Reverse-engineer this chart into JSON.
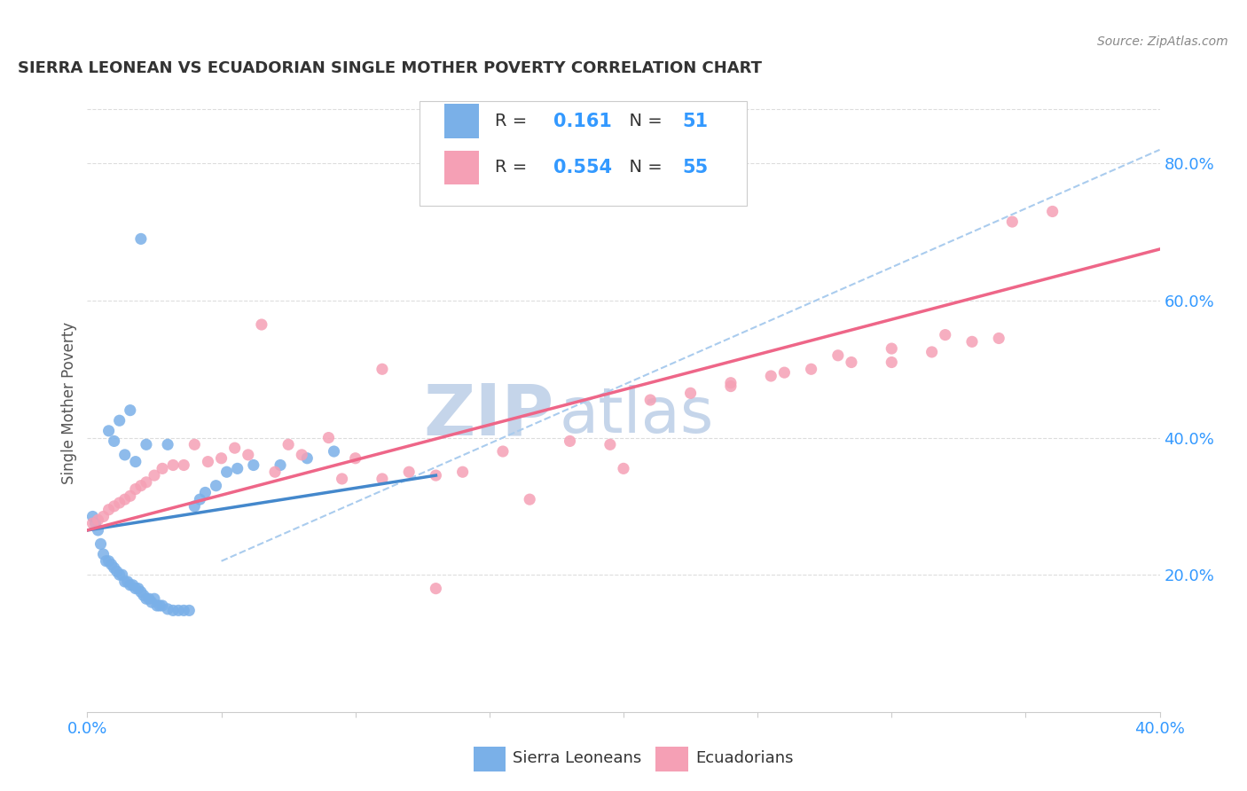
{
  "title": "SIERRA LEONEAN VS ECUADORIAN SINGLE MOTHER POVERTY CORRELATION CHART",
  "source": "Source: ZipAtlas.com",
  "ylabel": "Single Mother Poverty",
  "right_yticks": [
    "20.0%",
    "40.0%",
    "60.0%",
    "80.0%"
  ],
  "right_ytick_vals": [
    0.2,
    0.4,
    0.6,
    0.8
  ],
  "legend_blue_r": "0.161",
  "legend_blue_n": "51",
  "legend_pink_r": "0.554",
  "legend_pink_n": "55",
  "legend_label_blue": "Sierra Leoneans",
  "legend_label_pink": "Ecuadorians",
  "blue_scatter_color": "#7ab0e8",
  "pink_scatter_color": "#f5a0b5",
  "blue_line_color": "#4488cc",
  "pink_line_color": "#ee6688",
  "dashed_line_color": "#aaccee",
  "watermark_zip_color": "#c5d5ea",
  "watermark_atlas_color": "#c5d5ea",
  "title_color": "#333333",
  "axis_label_color": "#555555",
  "right_tick_color": "#3399ff",
  "source_color": "#888888",
  "grid_color": "#dddddd",
  "xlim": [
    0.0,
    0.4
  ],
  "ylim": [
    0.0,
    0.9
  ],
  "blue_x": [
    0.002,
    0.003,
    0.004,
    0.005,
    0.006,
    0.007,
    0.008,
    0.009,
    0.01,
    0.011,
    0.012,
    0.013,
    0.014,
    0.015,
    0.016,
    0.017,
    0.018,
    0.019,
    0.02,
    0.021,
    0.022,
    0.023,
    0.024,
    0.025,
    0.026,
    0.027,
    0.028,
    0.03,
    0.032,
    0.034,
    0.036,
    0.038,
    0.04,
    0.042,
    0.044,
    0.048,
    0.052,
    0.056,
    0.062,
    0.072,
    0.082,
    0.092,
    0.01,
    0.014,
    0.018,
    0.022,
    0.03,
    0.008,
    0.012,
    0.016,
    0.02
  ],
  "blue_y": [
    0.285,
    0.275,
    0.265,
    0.245,
    0.23,
    0.22,
    0.22,
    0.215,
    0.21,
    0.205,
    0.2,
    0.2,
    0.19,
    0.19,
    0.185,
    0.185,
    0.18,
    0.18,
    0.175,
    0.17,
    0.165,
    0.165,
    0.16,
    0.165,
    0.155,
    0.155,
    0.155,
    0.15,
    0.148,
    0.148,
    0.148,
    0.148,
    0.3,
    0.31,
    0.32,
    0.33,
    0.35,
    0.355,
    0.36,
    0.36,
    0.37,
    0.38,
    0.395,
    0.375,
    0.365,
    0.39,
    0.39,
    0.41,
    0.425,
    0.44,
    0.69
  ],
  "pink_x": [
    0.002,
    0.004,
    0.006,
    0.008,
    0.01,
    0.012,
    0.014,
    0.016,
    0.018,
    0.02,
    0.022,
    0.025,
    0.028,
    0.032,
    0.036,
    0.04,
    0.045,
    0.05,
    0.055,
    0.06,
    0.065,
    0.07,
    0.075,
    0.08,
    0.09,
    0.095,
    0.1,
    0.11,
    0.12,
    0.13,
    0.14,
    0.155,
    0.165,
    0.18,
    0.195,
    0.21,
    0.225,
    0.24,
    0.255,
    0.27,
    0.285,
    0.3,
    0.315,
    0.33,
    0.34,
    0.11,
    0.13,
    0.2,
    0.24,
    0.26,
    0.28,
    0.3,
    0.32,
    0.345,
    0.36
  ],
  "pink_y": [
    0.275,
    0.28,
    0.285,
    0.295,
    0.3,
    0.305,
    0.31,
    0.315,
    0.325,
    0.33,
    0.335,
    0.345,
    0.355,
    0.36,
    0.36,
    0.39,
    0.365,
    0.37,
    0.385,
    0.375,
    0.565,
    0.35,
    0.39,
    0.375,
    0.4,
    0.34,
    0.37,
    0.34,
    0.35,
    0.345,
    0.35,
    0.38,
    0.31,
    0.395,
    0.39,
    0.455,
    0.465,
    0.48,
    0.49,
    0.5,
    0.51,
    0.51,
    0.525,
    0.54,
    0.545,
    0.5,
    0.18,
    0.355,
    0.475,
    0.495,
    0.52,
    0.53,
    0.55,
    0.715,
    0.73
  ],
  "dashed_line_x": [
    0.05,
    0.4
  ],
  "dashed_line_y": [
    0.22,
    0.82
  ],
  "blue_line_x": [
    0.0,
    0.13
  ],
  "blue_line_y": [
    0.265,
    0.345
  ],
  "pink_line_x": [
    0.0,
    0.4
  ],
  "pink_line_y": [
    0.265,
    0.675
  ]
}
